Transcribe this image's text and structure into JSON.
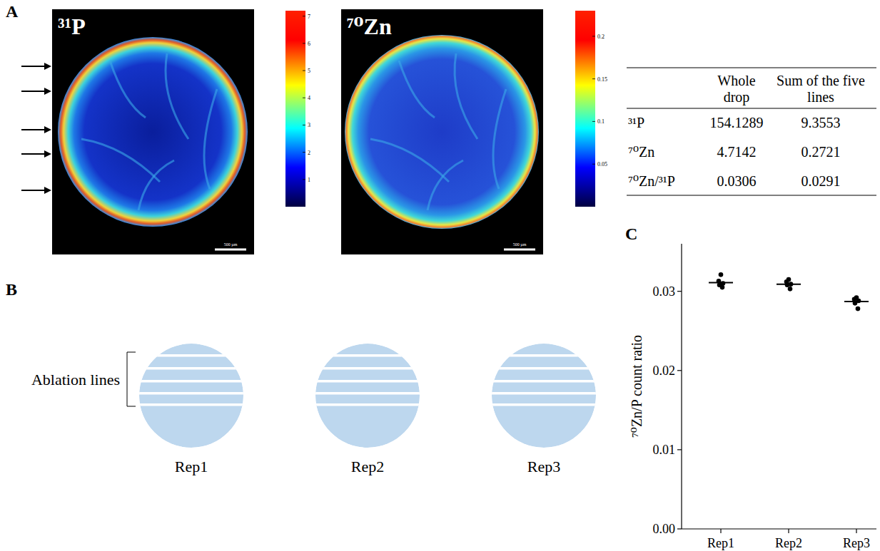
{
  "panel_labels": [
    "A",
    "B",
    "C"
  ],
  "images": [
    {
      "title": "³¹P",
      "colorbar": {
        "range": [
          0,
          7.2
        ],
        "ticks": [
          1,
          2,
          3,
          4,
          5,
          6,
          7
        ]
      },
      "scale_bar": "500 µm"
    },
    {
      "title": "⁷⁰Zn",
      "colorbar": {
        "range": [
          0,
          0.23
        ],
        "ticks": [
          0.05,
          0.1,
          0.15,
          0.2
        ]
      },
      "scale_bar": "500 µm"
    }
  ],
  "table": {
    "columns": [
      "Whole drop",
      "Sum of the five lines"
    ],
    "rows": [
      {
        "label": "³¹P",
        "values": [
          "154.1289",
          "9.3553"
        ]
      },
      {
        "label": "⁷⁰Zn",
        "values": [
          "4.7142",
          "0.2721"
        ]
      },
      {
        "label": "⁷⁰Zn/³¹P",
        "values": [
          "0.0306",
          "0.0291"
        ]
      }
    ]
  },
  "diagram": {
    "bracket_label": "Ablation lines",
    "replicates": [
      "Rep1",
      "Rep2",
      "Rep3"
    ]
  },
  "chart_data": {
    "type": "scatter",
    "categories": [
      "Rep1",
      "Rep2",
      "Rep3"
    ],
    "values": [
      0.0311,
      0.0309,
      0.0287
    ],
    "points": [
      [
        0.0321,
        0.0313,
        0.031,
        0.0308,
        0.0305
      ],
      [
        0.0315,
        0.0312,
        0.0309,
        0.0308,
        0.0303
      ],
      [
        0.0292,
        0.029,
        0.0288,
        0.0285,
        0.0278
      ]
    ],
    "y_label": "⁷⁰Zn/P count ratio",
    "ylim": [
      0,
      0.036
    ],
    "yticks": [
      {
        "value": 0,
        "label": "0.00"
      },
      0.01,
      0.02,
      0.03
    ],
    "marker": "circle",
    "color": "#000000"
  }
}
